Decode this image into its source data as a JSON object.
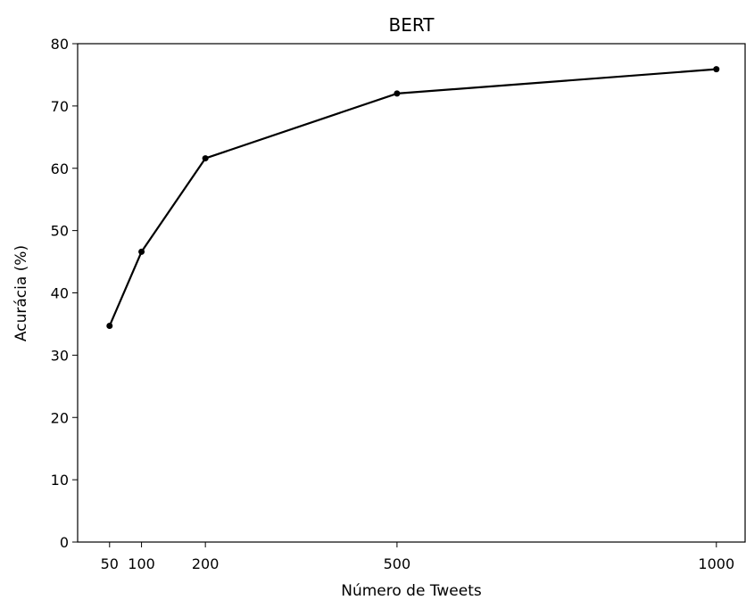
{
  "chart_data": {
    "type": "line",
    "title": "BERT",
    "xlabel": "Número de Tweets",
    "ylabel": "Acurácia (%)",
    "x": [
      50,
      100,
      200,
      500,
      1000
    ],
    "series": [
      {
        "values": [
          34.7,
          46.6,
          61.6,
          72.0,
          75.9
        ],
        "color": "#000000"
      }
    ],
    "xticks": [
      "50",
      "100",
      "200",
      "500",
      "1000"
    ],
    "yticks": [
      "0",
      "10",
      "20",
      "30",
      "40",
      "50",
      "60",
      "70",
      "80"
    ],
    "xlim": [
      0,
      1045
    ],
    "ylim": [
      0,
      80
    ],
    "grid": false
  }
}
